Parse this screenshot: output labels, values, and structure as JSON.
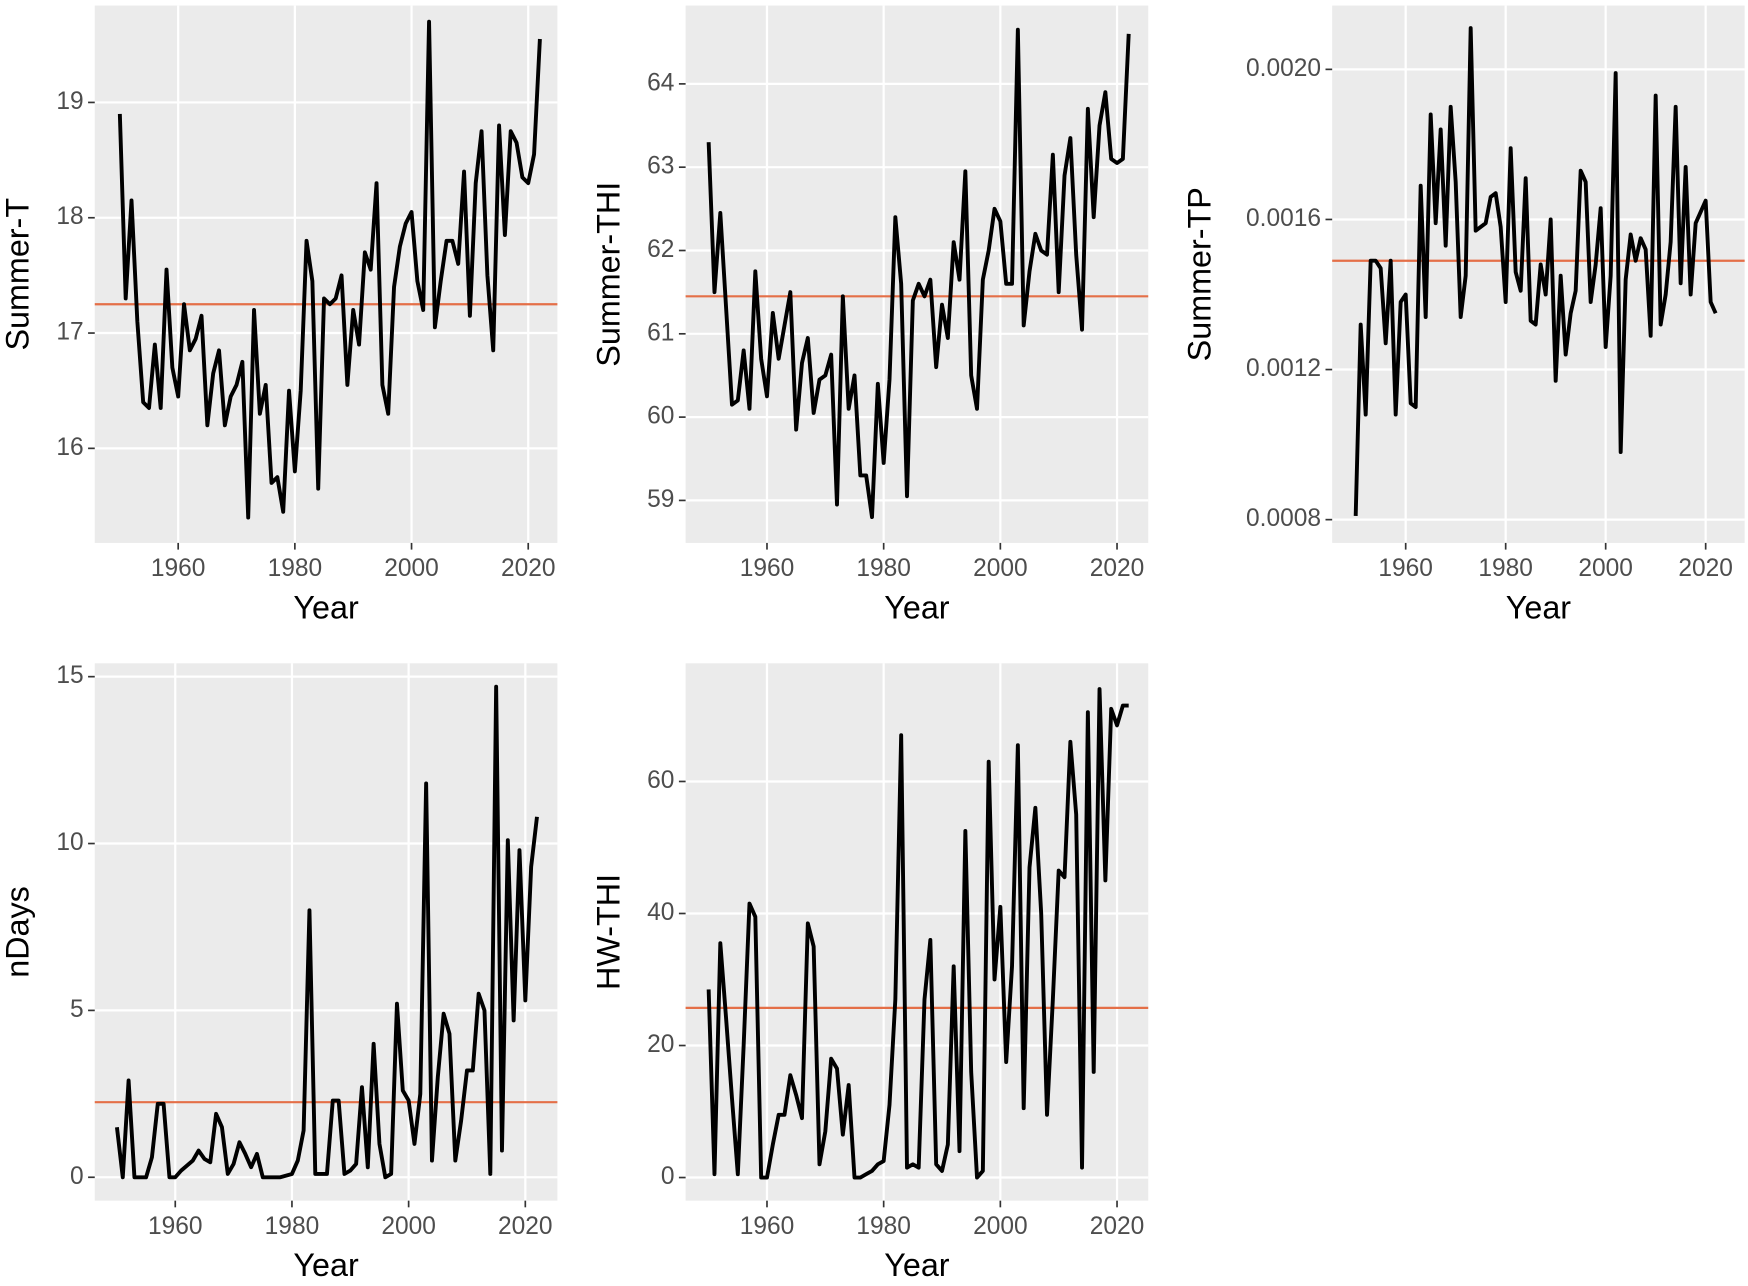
{
  "chart_data": [
    {
      "type": "line",
      "y_label": "Summer-T",
      "x_label": "Year",
      "x": [
        1950,
        1951,
        1952,
        1953,
        1954,
        1955,
        1956,
        1957,
        1958,
        1959,
        1960,
        1961,
        1962,
        1963,
        1964,
        1965,
        1966,
        1967,
        1968,
        1969,
        1970,
        1971,
        1972,
        1973,
        1974,
        1975,
        1976,
        1977,
        1978,
        1979,
        1980,
        1981,
        1982,
        1983,
        1984,
        1985,
        1986,
        1987,
        1988,
        1989,
        1990,
        1991,
        1992,
        1993,
        1994,
        1995,
        1996,
        1997,
        1998,
        1999,
        2000,
        2001,
        2002,
        2003,
        2004,
        2005,
        2006,
        2007,
        2008,
        2009,
        2010,
        2011,
        2012,
        2013,
        2014,
        2015,
        2016,
        2017,
        2018,
        2019,
        2020,
        2021,
        2022
      ],
      "values": [
        18.9,
        17.3,
        18.15,
        17.1,
        16.4,
        16.35,
        16.9,
        16.35,
        17.55,
        16.7,
        16.45,
        17.25,
        16.85,
        16.95,
        17.15,
        16.2,
        16.65,
        16.85,
        16.2,
        16.45,
        16.55,
        16.75,
        15.4,
        17.2,
        16.3,
        16.55,
        15.7,
        15.75,
        15.45,
        16.5,
        15.8,
        16.5,
        17.8,
        17.45,
        15.65,
        17.3,
        17.25,
        17.3,
        17.5,
        16.55,
        17.2,
        16.9,
        17.7,
        17.55,
        18.3,
        16.55,
        16.3,
        17.4,
        17.75,
        17.95,
        18.05,
        17.45,
        17.2,
        19.7,
        17.05,
        17.45,
        17.8,
        17.8,
        17.6,
        18.4,
        17.15,
        18.3,
        18.75,
        17.5,
        16.85,
        18.8,
        17.85,
        18.75,
        18.65,
        18.35,
        18.3,
        18.55,
        19.55
      ],
      "color": "#000000",
      "hline": 17.25,
      "hline_color": "#e46f47",
      "xlim": [
        1945.7,
        2025
      ],
      "xticks": [
        1960,
        1980,
        2000,
        2020
      ],
      "ylim": [
        15.18,
        19.84
      ],
      "yticks": [
        16,
        17,
        18,
        19
      ],
      "grid": true
    },
    {
      "type": "line",
      "y_label": "Summer-THI",
      "x_label": "Year",
      "x": [
        1950,
        1951,
        1952,
        1953,
        1954,
        1955,
        1956,
        1957,
        1958,
        1959,
        1960,
        1961,
        1962,
        1963,
        1964,
        1965,
        1966,
        1967,
        1968,
        1969,
        1970,
        1971,
        1972,
        1973,
        1974,
        1975,
        1976,
        1977,
        1978,
        1979,
        1980,
        1981,
        1982,
        1983,
        1984,
        1985,
        1986,
        1987,
        1988,
        1989,
        1990,
        1991,
        1992,
        1993,
        1994,
        1995,
        1996,
        1997,
        1998,
        1999,
        2000,
        2001,
        2002,
        2003,
        2004,
        2005,
        2006,
        2007,
        2008,
        2009,
        2010,
        2011,
        2012,
        2013,
        2014,
        2015,
        2016,
        2017,
        2018,
        2019,
        2020,
        2021,
        2022
      ],
      "values": [
        63.3,
        61.5,
        62.45,
        61.3,
        60.15,
        60.2,
        60.8,
        60.1,
        61.75,
        60.7,
        60.25,
        61.25,
        60.7,
        61.1,
        61.5,
        59.85,
        60.65,
        60.95,
        60.05,
        60.45,
        60.5,
        60.75,
        58.95,
        61.45,
        60.1,
        60.5,
        59.3,
        59.3,
        58.8,
        60.4,
        59.45,
        60.45,
        62.4,
        61.6,
        59.05,
        61.4,
        61.6,
        61.45,
        61.65,
        60.6,
        61.35,
        60.95,
        62.1,
        61.65,
        62.95,
        60.5,
        60.1,
        61.65,
        62.0,
        62.5,
        62.35,
        61.6,
        61.6,
        64.65,
        61.1,
        61.75,
        62.2,
        62.0,
        61.95,
        63.15,
        61.5,
        62.9,
        63.35,
        61.95,
        61.05,
        63.7,
        62.4,
        63.5,
        63.9,
        63.1,
        63.05,
        63.1,
        64.6
      ],
      "color": "#000000",
      "hline": 61.45,
      "hline_color": "#e46f47",
      "xlim": [
        1946.05,
        2025.35
      ],
      "xticks": [
        1960,
        1980,
        2000,
        2020
      ],
      "ylim": [
        58.49,
        64.94
      ],
      "yticks": [
        59,
        60,
        61,
        62,
        63,
        64
      ],
      "grid": true
    },
    {
      "type": "line",
      "y_label": "Summer-TP",
      "x_label": "Year",
      "x": [
        1950,
        1951,
        1952,
        1953,
        1954,
        1955,
        1956,
        1957,
        1958,
        1959,
        1960,
        1961,
        1962,
        1963,
        1964,
        1965,
        1966,
        1967,
        1968,
        1969,
        1970,
        1971,
        1972,
        1973,
        1974,
        1975,
        1976,
        1977,
        1978,
        1979,
        1980,
        1981,
        1982,
        1983,
        1984,
        1985,
        1986,
        1987,
        1988,
        1989,
        1990,
        1991,
        1992,
        1993,
        1994,
        1995,
        1996,
        1997,
        1998,
        1999,
        2000,
        2001,
        2002,
        2003,
        2004,
        2005,
        2006,
        2007,
        2008,
        2009,
        2010,
        2011,
        2012,
        2013,
        2014,
        2015,
        2016,
        2017,
        2018,
        2019,
        2020,
        2021,
        2022
      ],
      "values": [
        0.00081,
        0.00132,
        0.00108,
        0.00149,
        0.00149,
        0.00147,
        0.00127,
        0.00149,
        0.00108,
        0.00138,
        0.0014,
        0.00111,
        0.0011,
        0.00169,
        0.00134,
        0.00188,
        0.00159,
        0.00184,
        0.00153,
        0.0019,
        0.0017,
        0.00134,
        0.00145,
        0.00211,
        0.00157,
        0.00158,
        0.00159,
        0.00166,
        0.00167,
        0.00158,
        0.00138,
        0.00179,
        0.00146,
        0.00141,
        0.00171,
        0.00133,
        0.00132,
        0.00148,
        0.0014,
        0.0016,
        0.00117,
        0.00145,
        0.00124,
        0.00135,
        0.00141,
        0.00173,
        0.0017,
        0.00138,
        0.00148,
        0.00163,
        0.00126,
        0.00145,
        0.00199,
        0.00098,
        0.00144,
        0.00156,
        0.00149,
        0.00155,
        0.00152,
        0.00129,
        0.00193,
        0.00132,
        0.0014,
        0.00154,
        0.0019,
        0.00143,
        0.00174,
        0.0014,
        0.00159,
        0.00162,
        0.00165,
        0.00138,
        0.00135
      ],
      "color": "#000000",
      "hline": 0.00149,
      "hline_color": "#e46f47",
      "xlim": [
        1945.3,
        2027.8
      ],
      "xticks": [
        1960,
        1980,
        2000,
        2020
      ],
      "ylim": [
        0.000738,
        0.00217
      ],
      "yticks": [
        {
          "value": 0.0008,
          "label": "0.0008"
        },
        {
          "value": 0.0012,
          "label": "0.0012"
        },
        {
          "value": 0.0016,
          "label": "0.0016"
        },
        {
          "value": 0.002,
          "label": "0.0020"
        }
      ],
      "grid": true
    },
    {
      "type": "line",
      "y_label": "nDays",
      "x_label": "Year",
      "x": [
        1950,
        1951,
        1952,
        1953,
        1954,
        1955,
        1956,
        1957,
        1958,
        1959,
        1960,
        1961,
        1962,
        1963,
        1964,
        1965,
        1966,
        1967,
        1968,
        1969,
        1970,
        1971,
        1972,
        1973,
        1974,
        1975,
        1976,
        1977,
        1978,
        1979,
        1980,
        1981,
        1982,
        1983,
        1984,
        1985,
        1986,
        1987,
        1988,
        1989,
        1990,
        1991,
        1992,
        1993,
        1994,
        1995,
        1996,
        1997,
        1998,
        1999,
        2000,
        2001,
        2002,
        2003,
        2004,
        2005,
        2006,
        2007,
        2008,
        2009,
        2010,
        2011,
        2012,
        2013,
        2014,
        2015,
        2016,
        2017,
        2018,
        2019,
        2020,
        2021,
        2022
      ],
      "values": [
        1.5,
        0,
        2.9,
        0,
        0,
        0,
        0.6,
        2.2,
        2.2,
        0,
        0,
        0.2,
        0.35,
        0.5,
        0.8,
        0.55,
        0.45,
        1.9,
        1.5,
        0.1,
        0.4,
        1.05,
        0.7,
        0.3,
        0.7,
        0,
        0,
        0,
        0,
        0.05,
        0.1,
        0.5,
        1.4,
        8.0,
        0.1,
        0.1,
        0.1,
        2.3,
        2.3,
        0.1,
        0.2,
        0.4,
        2.7,
        0.3,
        4.0,
        1.0,
        0,
        0.1,
        5.2,
        2.6,
        2.3,
        1.0,
        2.5,
        11.8,
        0.5,
        3.0,
        4.9,
        4.3,
        0.5,
        1.7,
        3.2,
        3.2,
        5.5,
        5.0,
        0.1,
        14.7,
        0.8,
        10.1,
        4.7,
        9.8,
        5.3,
        9.3,
        10.8
      ],
      "color": "#000000",
      "hline": 2.25,
      "hline_color": "#e46f47",
      "xlim": [
        1946.2,
        2025.5
      ],
      "xticks": [
        1960,
        1980,
        2000,
        2020
      ],
      "ylim": [
        -0.7,
        15.4
      ],
      "yticks": [
        0,
        5,
        10,
        15
      ],
      "grid": true
    },
    {
      "type": "line",
      "y_label": "HW-THI",
      "x_label": "Year",
      "x": [
        1950,
        1951,
        1952,
        1953,
        1954,
        1955,
        1956,
        1957,
        1958,
        1959,
        1960,
        1961,
        1962,
        1963,
        1964,
        1965,
        1966,
        1967,
        1968,
        1969,
        1970,
        1971,
        1972,
        1973,
        1974,
        1975,
        1976,
        1977,
        1978,
        1979,
        1980,
        1981,
        1982,
        1983,
        1984,
        1985,
        1986,
        1987,
        1988,
        1989,
        1990,
        1991,
        1992,
        1993,
        1994,
        1995,
        1996,
        1997,
        1998,
        1999,
        2000,
        2001,
        2002,
        2003,
        2004,
        2005,
        2006,
        2007,
        2008,
        2009,
        2010,
        2011,
        2012,
        2013,
        2014,
        2015,
        2016,
        2017,
        2018,
        2019,
        2020,
        2021,
        2022
      ],
      "values": [
        28.5,
        0.5,
        35.5,
        24,
        12,
        0.5,
        20,
        41.5,
        39.5,
        0,
        0,
        5,
        9.5,
        9.5,
        15.5,
        12.5,
        9,
        38.5,
        35,
        2,
        7,
        18,
        16.5,
        6.5,
        14,
        0,
        0,
        0.5,
        1,
        2,
        2.5,
        11,
        27,
        67,
        1.5,
        2,
        1.5,
        27,
        36,
        2,
        1,
        5,
        32,
        4,
        52.5,
        16,
        0,
        1,
        63,
        30,
        41,
        17.5,
        32,
        65.5,
        10.5,
        47,
        56,
        40,
        9.5,
        27,
        46.5,
        45.5,
        66,
        55,
        1.5,
        70.5,
        16,
        74,
        45,
        71,
        68.5,
        71.5,
        71.5
      ],
      "color": "#000000",
      "hline": 25.7,
      "hline_color": "#e46f47",
      "xlim": [
        1946.05,
        2025.35
      ],
      "xticks": [
        1960,
        1980,
        2000,
        2020
      ],
      "ylim": [
        -3.5,
        77.9
      ],
      "yticks": [
        0,
        20,
        40,
        60
      ],
      "grid": true
    }
  ]
}
